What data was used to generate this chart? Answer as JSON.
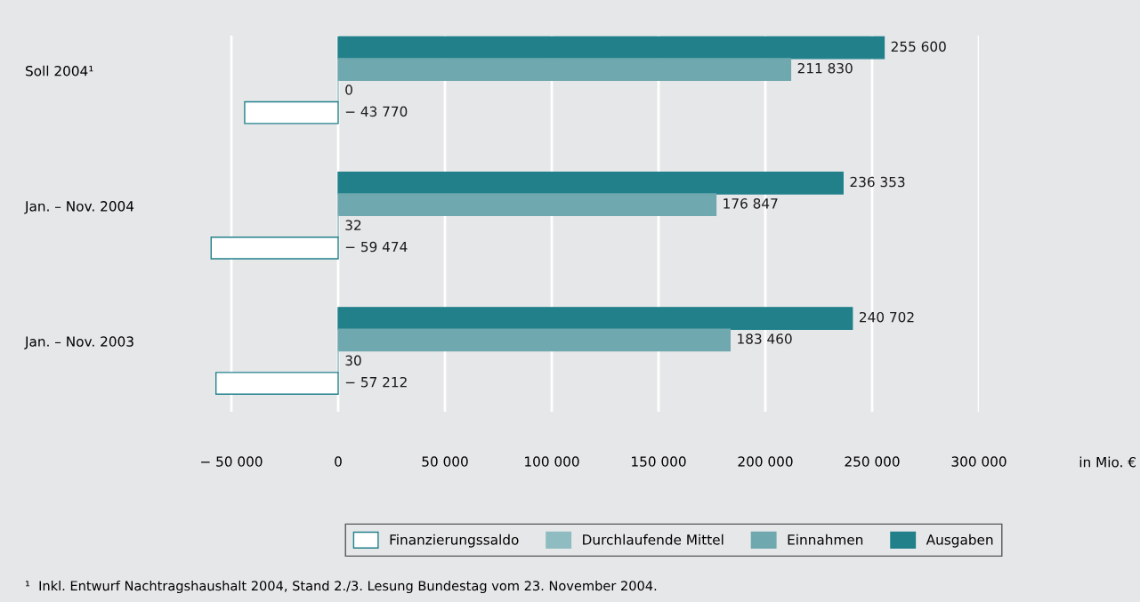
{
  "chart_data": {
    "type": "bar",
    "orientation": "horizontal",
    "categories": [
      "Soll 2004¹",
      "Jan. – Nov. 2004",
      "Jan. – Nov. 2003"
    ],
    "series": [
      {
        "name": "Ausgaben",
        "color": "#21808a",
        "values": [
          255600,
          236353,
          240702
        ],
        "value_labels": [
          "255 600",
          "236 353",
          "240 702"
        ]
      },
      {
        "name": "Einnahmen",
        "color": "#6fa8ae",
        "values": [
          211830,
          176847,
          183460
        ],
        "value_labels": [
          "211 830",
          "176 847",
          "183 460"
        ]
      },
      {
        "name": "Durchlaufende Mittel",
        "color": "#8fbcc1",
        "values": [
          0,
          32,
          30
        ],
        "value_labels": [
          "0",
          "32",
          "30"
        ]
      },
      {
        "name": "Finanzierungssaldo",
        "color": "#ffffff",
        "values": [
          -43770,
          -59474,
          -57212
        ],
        "value_labels": [
          "− 43 770",
          "− 59 474",
          "− 57 212"
        ]
      }
    ],
    "xlim": [
      -60000,
      300000
    ],
    "xticks": [
      {
        "value": -50000,
        "label": "− 50 000"
      },
      0,
      {
        "value": 50000,
        "label": "50 000"
      },
      {
        "value": 100000,
        "label": "100 000"
      },
      {
        "value": 150000,
        "label": "150 000"
      },
      {
        "value": 200000,
        "label": "200 000"
      },
      {
        "value": 250000,
        "label": "250 000"
      },
      {
        "value": 300000,
        "label": "300 000"
      }
    ],
    "grid": "x",
    "legend": "bottom",
    "annotations": [
      "in Mio. €",
      "¹  Inkl. Entwurf Nachtragshaushalt 2004, Stand 2./3. Lesung Bundestag vom 23. November 2004."
    ]
  }
}
